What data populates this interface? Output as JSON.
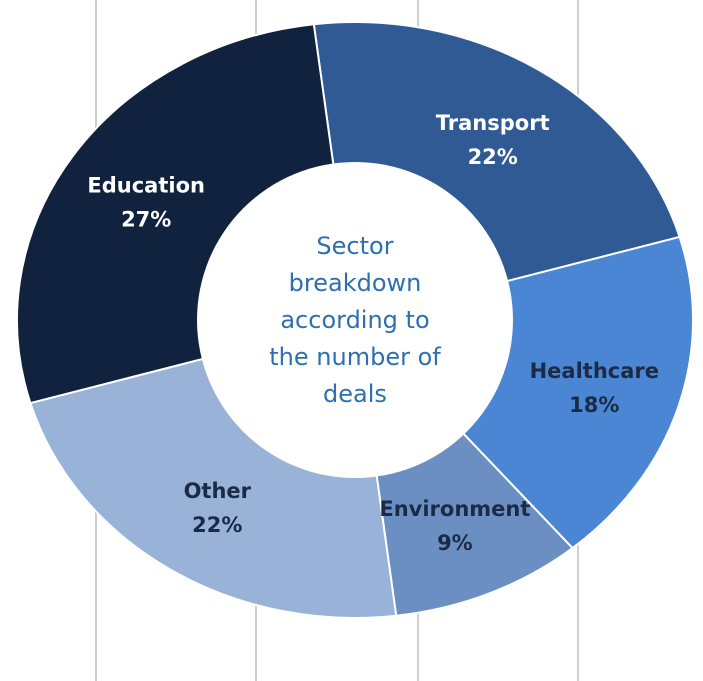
{
  "chart_data": {
    "type": "pie",
    "donut": true,
    "center_label_lines": [
      "Sector",
      "breakdown",
      "according to",
      "the number of",
      "deals"
    ],
    "slices": [
      {
        "label": "Transport",
        "value": 22,
        "display": "22%",
        "color": "#2f5a94",
        "text_color": "#ffffff"
      },
      {
        "label": "Healthcare",
        "value": 18,
        "display": "18%",
        "color": "#4a86d4",
        "text_color": "#1b2b45"
      },
      {
        "label": "Environment",
        "value": 9,
        "display": "9%",
        "color": "#6b8fc3",
        "text_color": "#1b2b45"
      },
      {
        "label": "Other",
        "value": 22,
        "display": "22%",
        "color": "#98b2d8",
        "text_color": "#1b2b45"
      },
      {
        "label": "Education",
        "value": 27,
        "display": "27%",
        "color": "#10223e",
        "text_color": "#ffffff"
      }
    ],
    "center_text_color": "#2e6fb0",
    "background_color": "#ffffff"
  }
}
